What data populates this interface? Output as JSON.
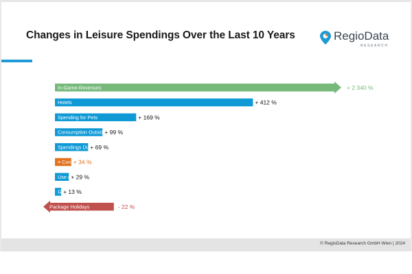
{
  "header": {
    "title": "Changes in Leisure Spendings Over the Last 10 Years"
  },
  "logo": {
    "name": "RegioData",
    "subtitle": "RESEARCH",
    "pin_icon": "location-pin-icon"
  },
  "footer": {
    "copyright": "© RegioData Research GmbH Wien | 2024"
  },
  "colors": {
    "bar_blue": "#0f9ad6",
    "bar_green": "#76b97b",
    "bar_orange": "#e2711d",
    "bar_red": "#c0504d",
    "accent": "#1e9ad6"
  },
  "chart_data": {
    "type": "bar",
    "orientation": "horizontal",
    "title": "Changes in Leisure Spendings Over the Last 10 Years",
    "categories": [
      "In-Game-Revenues",
      "Hotels",
      "Spending for Pets",
      "Consumption Outside the Home, Leisure",
      "Spendings During Vacations",
      "¤ Consumer Spendings",
      "Use of Fitness Centers",
      "Gambling",
      "Package Holidays"
    ],
    "values": [
      2340,
      412,
      169,
      99,
      69,
      34,
      29,
      13,
      -22
    ],
    "value_labels": [
      "+ 2 340 %",
      "+ 412 %",
      "+ 169 %",
      "+ 99 %",
      "+ 69 %",
      "+ 34 %",
      "+ 29 %",
      "+ 13 %",
      "- 22 %"
    ],
    "bar_colors": [
      "#76b97b",
      "#0f9ad6",
      "#0f9ad6",
      "#0f9ad6",
      "#0f9ad6",
      "#e2711d",
      "#0f9ad6",
      "#0f9ad6",
      "#c0504d"
    ],
    "label_colors": [
      "#76b97b",
      "#111111",
      "#111111",
      "#111111",
      "#111111",
      "#e2711d",
      "#111111",
      "#111111",
      "#c0504d"
    ],
    "arrow_bars": [
      "In-Game-Revenues",
      "Package Holidays"
    ],
    "axis_break": "In-Game-Revenues bar truncated with arrow",
    "xlabel": "",
    "ylabel": "",
    "grid": false,
    "legend": "none"
  }
}
